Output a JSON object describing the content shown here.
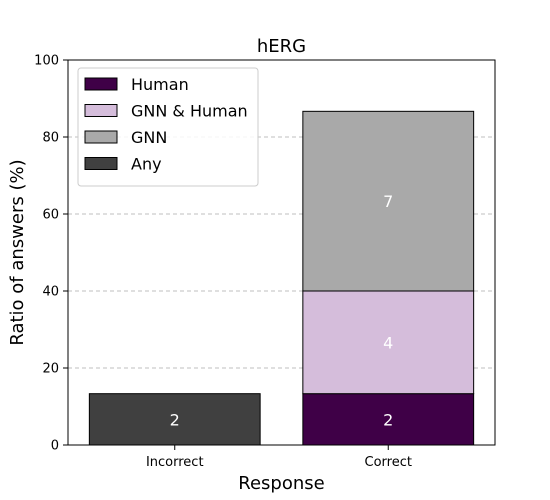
{
  "chart_data": {
    "type": "bar",
    "stacked": true,
    "title": "hERG",
    "xlabel": "Response",
    "ylabel": "Ratio of answers (%)",
    "ylim": [
      0,
      100
    ],
    "yticks": [
      0,
      20,
      40,
      60,
      80,
      100
    ],
    "grid": "horizontal-dashed",
    "legend_position": "top-left",
    "categories": [
      "Incorrect",
      "Correct"
    ],
    "series": [
      {
        "name": "Human",
        "color": "#3f0047",
        "values": [
          0,
          13.33
        ],
        "labels": [
          "",
          "2"
        ]
      },
      {
        "name": "GNN & Human",
        "color": "#d5bddb",
        "values": [
          0,
          26.67
        ],
        "labels": [
          "",
          "4"
        ]
      },
      {
        "name": "GNN",
        "color": "#a9a9a9",
        "values": [
          0,
          46.67
        ],
        "labels": [
          "",
          "7"
        ]
      },
      {
        "name": "Any",
        "color": "#404040",
        "values": [
          13.33,
          0
        ],
        "labels": [
          "2",
          ""
        ]
      }
    ]
  }
}
